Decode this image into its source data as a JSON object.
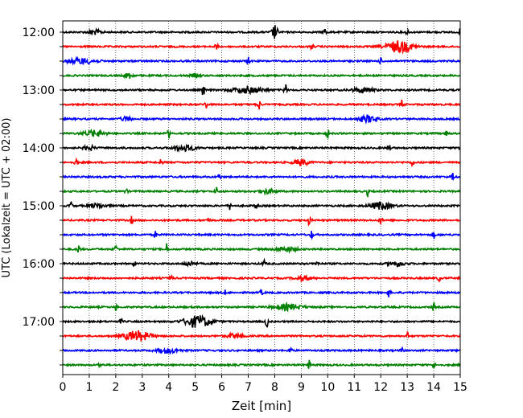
{
  "chart_data": {
    "type": "line",
    "title": "",
    "xlabel": "Zeit  [min]",
    "ylabel": "UTC (Lokalzeit = UTC + 02:00)",
    "xlim": [
      0,
      15
    ],
    "x_ticks": [
      0,
      1,
      2,
      3,
      4,
      5,
      6,
      7,
      8,
      9,
      10,
      11,
      12,
      13,
      14,
      15
    ],
    "grid": "vertical dotted at each minute",
    "y_tick_labels": [
      "12:00",
      "13:00",
      "14:00",
      "15:00",
      "16:00",
      "17:00"
    ],
    "trace_interval_min": 15,
    "series_colors": [
      "#000000",
      "#ff0000",
      "#0000ff",
      "#008000"
    ],
    "traces": [
      {
        "start": "12:00",
        "events": [
          [
            1.2,
            0.25,
            0.3
          ],
          [
            8.0,
            0.1,
            1.0
          ],
          [
            9.9,
            0.05,
            0.6
          ],
          [
            13.0,
            0.05,
            0.5
          ],
          [
            15.0,
            0.05,
            0.4
          ]
        ]
      },
      {
        "start": "12:15",
        "events": [
          [
            5.8,
            0.05,
            0.5
          ],
          [
            9.4,
            0.05,
            0.4
          ],
          [
            12.7,
            0.5,
            0.8
          ]
        ]
      },
      {
        "start": "12:30",
        "events": [
          [
            0.7,
            0.5,
            0.4
          ],
          [
            7.0,
            0.05,
            0.5
          ],
          [
            12.0,
            0.05,
            0.4
          ]
        ]
      },
      {
        "start": "12:45",
        "events": [
          [
            2.5,
            0.15,
            0.4
          ],
          [
            5.0,
            0.2,
            0.2
          ]
        ]
      },
      {
        "start": "13:00",
        "events": [
          [
            5.3,
            0.05,
            1.0
          ],
          [
            7.0,
            0.6,
            0.4
          ],
          [
            8.4,
            0.05,
            0.9
          ],
          [
            11.3,
            0.4,
            0.3
          ]
        ]
      },
      {
        "start": "13:15",
        "events": [
          [
            5.4,
            0.05,
            0.6
          ],
          [
            7.4,
            0.05,
            0.8
          ],
          [
            12.8,
            0.05,
            0.6
          ]
        ]
      },
      {
        "start": "13:30",
        "events": [
          [
            2.4,
            0.2,
            0.3
          ],
          [
            11.5,
            0.3,
            0.5
          ]
        ]
      },
      {
        "start": "13:45",
        "events": [
          [
            1.2,
            0.4,
            0.4
          ],
          [
            4.0,
            0.05,
            0.6
          ],
          [
            10.0,
            0.05,
            0.6
          ],
          [
            14.5,
            0.05,
            0.5
          ]
        ]
      },
      {
        "start": "14:00",
        "events": [
          [
            1.0,
            0.2,
            0.3
          ],
          [
            4.6,
            0.4,
            0.4
          ],
          [
            12.3,
            0.05,
            0.6
          ],
          [
            15.0,
            0.05,
            0.5
          ]
        ]
      },
      {
        "start": "14:15",
        "events": [
          [
            0.5,
            0.05,
            0.7
          ],
          [
            3.7,
            0.05,
            0.6
          ],
          [
            9.0,
            0.3,
            0.4
          ],
          [
            13.2,
            0.05,
            0.5
          ]
        ]
      },
      {
        "start": "14:30",
        "events": [
          [
            5.9,
            0.05,
            0.5
          ],
          [
            14.7,
            0.05,
            0.8
          ]
        ]
      },
      {
        "start": "14:45",
        "events": [
          [
            2.4,
            0.05,
            0.4
          ],
          [
            5.8,
            0.05,
            0.6
          ],
          [
            7.7,
            0.3,
            0.3
          ],
          [
            11.5,
            0.05,
            0.6
          ]
        ]
      },
      {
        "start": "15:00",
        "events": [
          [
            0.3,
            0.05,
            0.6
          ],
          [
            1.3,
            0.3,
            0.3
          ],
          [
            6.3,
            0.05,
            0.5
          ],
          [
            7.3,
            0.05,
            0.6
          ],
          [
            12.0,
            0.4,
            0.5
          ]
        ]
      },
      {
        "start": "15:15",
        "events": [
          [
            2.6,
            0.05,
            0.5
          ],
          [
            5.5,
            0.05,
            0.5
          ],
          [
            9.3,
            0.05,
            0.6
          ],
          [
            12.0,
            0.05,
            0.5
          ]
        ]
      },
      {
        "start": "15:30",
        "events": [
          [
            3.5,
            0.05,
            0.5
          ],
          [
            9.4,
            0.05,
            0.6
          ],
          [
            14.0,
            0.05,
            0.5
          ]
        ]
      },
      {
        "start": "15:45",
        "events": [
          [
            0.6,
            0.05,
            0.7
          ],
          [
            2.0,
            0.05,
            0.5
          ],
          [
            3.9,
            0.05,
            0.9
          ],
          [
            8.4,
            0.4,
            0.3
          ]
        ]
      },
      {
        "start": "16:00",
        "events": [
          [
            2.7,
            0.05,
            0.4
          ],
          [
            4.8,
            0.2,
            0.3
          ],
          [
            7.6,
            0.05,
            0.5
          ],
          [
            9.6,
            0.05,
            0.5
          ],
          [
            12.6,
            0.3,
            0.3
          ]
        ]
      },
      {
        "start": "16:15",
        "events": [
          [
            4.1,
            0.05,
            0.4
          ],
          [
            9.1,
            0.3,
            0.3
          ],
          [
            14.2,
            0.05,
            0.4
          ]
        ]
      },
      {
        "start": "16:30",
        "events": [
          [
            6.1,
            0.05,
            0.4
          ],
          [
            7.5,
            0.05,
            0.4
          ],
          [
            12.3,
            0.05,
            0.6
          ]
        ]
      },
      {
        "start": "16:45",
        "events": [
          [
            2.0,
            0.05,
            0.4
          ],
          [
            8.5,
            0.5,
            0.4
          ],
          [
            14.0,
            0.05,
            0.6
          ]
        ]
      },
      {
        "start": "17:00",
        "events": [
          [
            2.2,
            0.05,
            0.4
          ],
          [
            5.1,
            0.5,
            0.8
          ],
          [
            7.7,
            0.05,
            0.8
          ]
        ]
      },
      {
        "start": "17:15",
        "events": [
          [
            2.8,
            0.5,
            0.7
          ],
          [
            6.5,
            0.3,
            0.3
          ],
          [
            13.0,
            0.05,
            0.5
          ]
        ]
      },
      {
        "start": "17:30",
        "events": [
          [
            4.0,
            0.4,
            0.3
          ],
          [
            8.6,
            0.05,
            0.6
          ],
          [
            12.8,
            0.05,
            0.4
          ]
        ]
      },
      {
        "start": "17:45",
        "events": [
          [
            1.4,
            0.05,
            0.4
          ],
          [
            9.3,
            0.05,
            0.6
          ],
          [
            14.0,
            0.05,
            0.5
          ]
        ]
      }
    ]
  }
}
